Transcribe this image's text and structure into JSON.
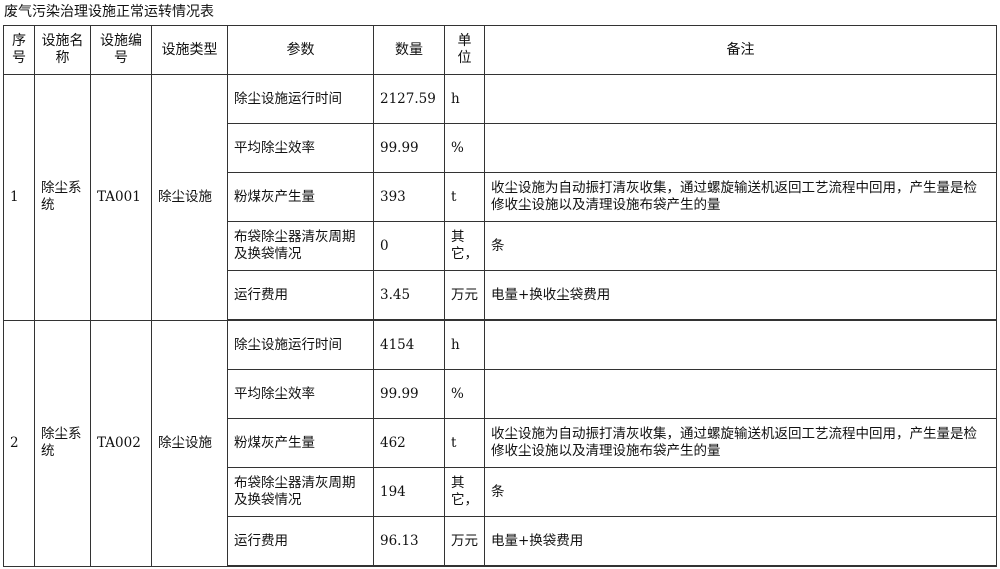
{
  "title": "废气污染治理设施正常运转情况表",
  "headers": [
    "序号",
    "设施名称",
    "设施编号",
    "设施类型",
    "参数",
    "数量",
    "单位",
    "备注"
  ],
  "groups": [
    {
      "no": "1",
      "name": "除尘系统",
      "code": "TA001",
      "type": "除尘设施",
      "rows": [
        {
          "param": "除尘设施运行时间",
          "qty": "2127.59",
          "unit": "h",
          "note": ""
        },
        {
          "param": "平均除尘效率",
          "qty": "99.99",
          "unit": "%",
          "note": ""
        },
        {
          "param": "粉煤灰产生量",
          "qty": "393",
          "unit": "t",
          "note": "收尘设施为自动振打清灰收集，通过螺旋输送机返回工艺流程中回用，产生量是检修收尘设施以及清理设施布袋产生的量"
        },
        {
          "param": "布袋除尘器清灰周期及换袋情况",
          "qty": "0",
          "unit": "其它，",
          "note": "条"
        },
        {
          "param": "运行费用",
          "qty": "3.45",
          "unit": "万元",
          "note": "电量+换收尘袋费用"
        }
      ]
    },
    {
      "no": "2",
      "name": "除尘系统",
      "code": "TA002",
      "type": "除尘设施",
      "rows": [
        {
          "param": "除尘设施运行时间",
          "qty": "4154",
          "unit": "h",
          "note": ""
        },
        {
          "param": "平均除尘效率",
          "qty": "99.99",
          "unit": "%",
          "note": ""
        },
        {
          "param": "粉煤灰产生量",
          "qty": "462",
          "unit": "t",
          "note": "收尘设施为自动振打清灰收集，通过螺旋输送机返回工艺流程中回用，产生量是检修收尘设施以及清理设施布袋产生的量"
        },
        {
          "param": "布袋除尘器清灰周期及换袋情况",
          "qty": "194",
          "unit": "其它，",
          "note": "条"
        },
        {
          "param": "运行费用",
          "qty": "96.13",
          "unit": "万元",
          "note": "电量+换袋费用"
        }
      ]
    }
  ]
}
